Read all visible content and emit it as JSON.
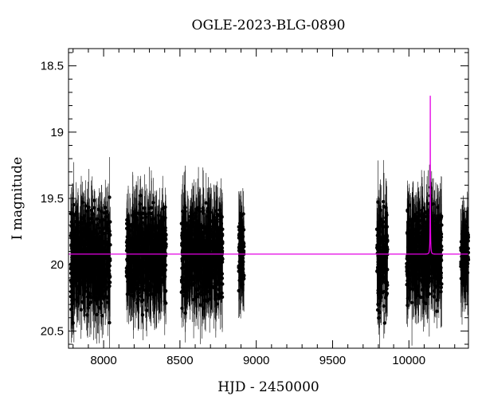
{
  "chart_data": {
    "type": "scatter",
    "title": "OGLE-2023-BLG-0890",
    "xlabel": "HJD - 2450000",
    "ylabel": "I magnitude",
    "xlim": [
      7770,
      10390
    ],
    "ylim": [
      20.63,
      18.37
    ],
    "y_inverted": true,
    "grid": false,
    "legend": "none",
    "xticks": [
      8000,
      8500,
      9000,
      9500,
      10000
    ],
    "xtick_labels": [
      "8000",
      "8500",
      "9000",
      "9500",
      "10000"
    ],
    "yticks": [
      18.5,
      19,
      19.5,
      20,
      20.5
    ],
    "ytick_labels": [
      "18.5",
      "19",
      "19.5",
      "20",
      "20.5"
    ],
    "colors": {
      "data": "#000000",
      "model": "#e400e4"
    },
    "observing_seasons": [
      {
        "x_start": 7785,
        "x_end": 8045,
        "y_mean": 19.95,
        "y_scatter": 0.17
      },
      {
        "x_start": 8150,
        "x_end": 8410,
        "y_mean": 19.93,
        "y_scatter": 0.16
      },
      {
        "x_start": 8510,
        "x_end": 8780,
        "y_mean": 19.93,
        "y_scatter": 0.16
      },
      {
        "x_start": 8885,
        "x_end": 8920,
        "y_mean": 19.93,
        "y_scatter": 0.13
      },
      {
        "x_start": 9790,
        "x_end": 9860,
        "y_mean": 19.95,
        "y_scatter": 0.18
      },
      {
        "x_start": 9985,
        "x_end": 10215,
        "y_mean": 19.92,
        "y_scatter": 0.16
      },
      {
        "x_start": 10340,
        "x_end": 10390,
        "y_mean": 19.92,
        "y_scatter": 0.1
      }
    ],
    "series": [
      {
        "name": "",
        "kind": "point-lens model",
        "params": {
          "t0": 10140,
          "u0": 0.03,
          "tE": 7,
          "fs": 0.062,
          "baseline": 19.92
        }
      }
    ]
  }
}
